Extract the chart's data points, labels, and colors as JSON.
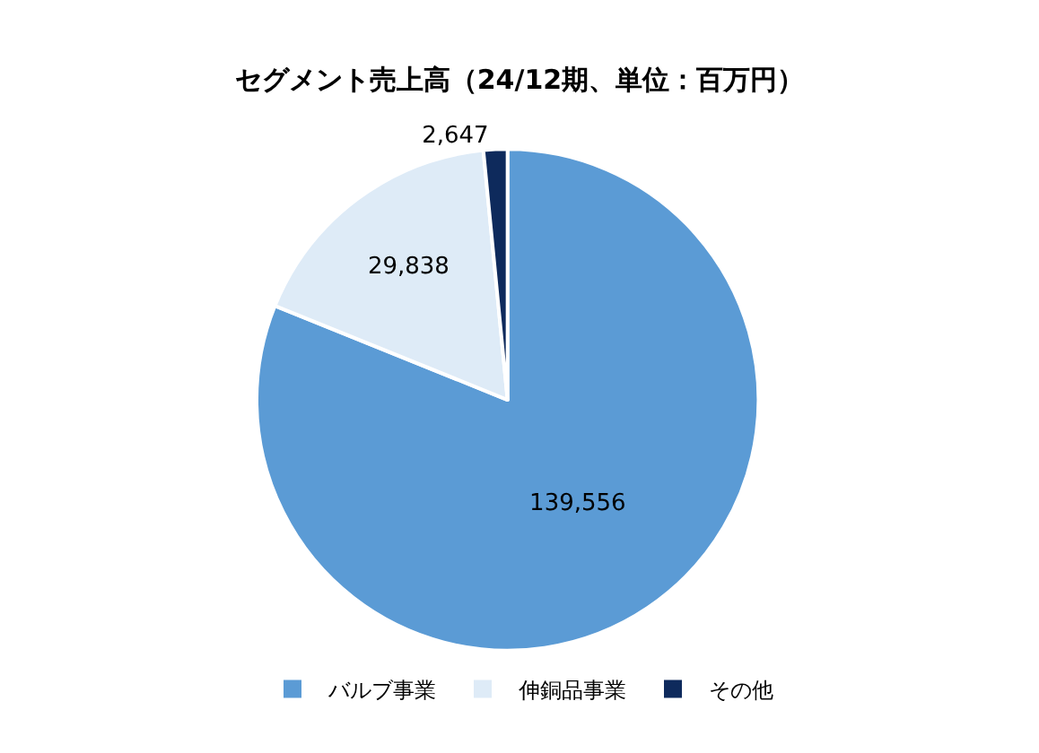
{
  "chart_data": {
    "type": "pie",
    "title": "セグメント売上高（24/12期、単位：百万円）",
    "categories": [
      "バルブ事業",
      "伸銅品事業",
      "その他"
    ],
    "values": [
      139556,
      29838,
      2647
    ],
    "colors": [
      "#5b9bd5",
      "#deebf7",
      "#0e2a5c"
    ],
    "value_labels": [
      "139,556",
      "29,838",
      "2,647"
    ],
    "legend": "bottom"
  }
}
